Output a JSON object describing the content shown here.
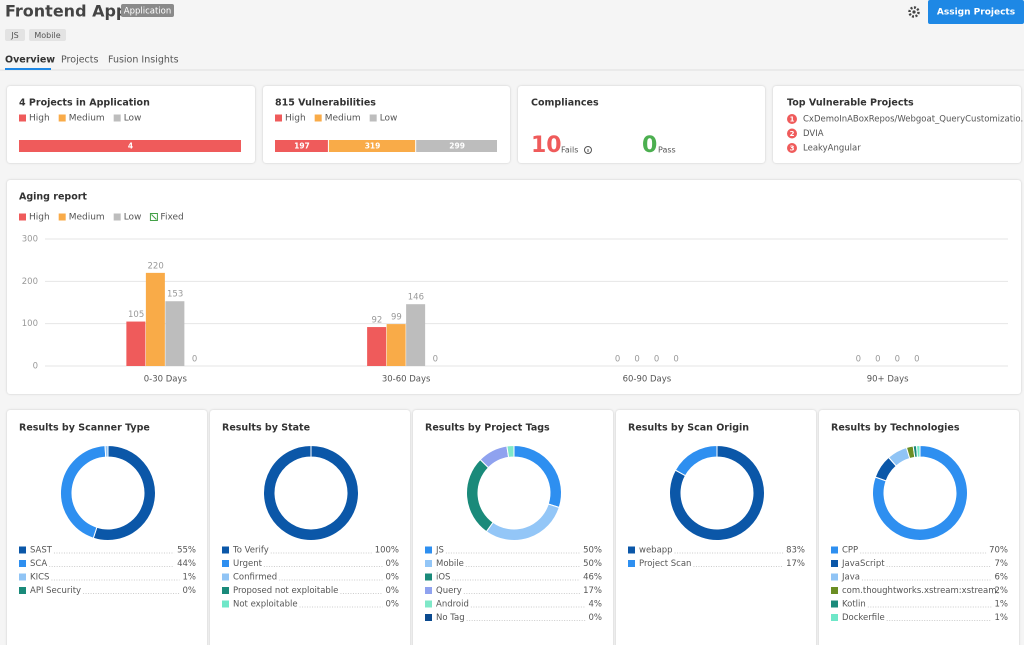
{
  "header": {
    "title": "Frontend Apps",
    "badge": "Application",
    "tags": [
      "JS",
      "Mobile"
    ],
    "button": "Assign Projects"
  },
  "tabs": [
    "Overview",
    "Projects",
    "Fusion Insights"
  ],
  "projects_card": {
    "title": "4 Projects in Application",
    "bar": [
      4
    ]
  },
  "vulnerabilities_card": {
    "title": "815 Vulnerabilities",
    "bar": [
      197,
      319,
      299
    ]
  },
  "compliances": {
    "title": "Compliances",
    "fails": 10,
    "fails_label": "Fails",
    "pass": 0,
    "pass_label": "Pass"
  },
  "top_projects": {
    "title": "Top Vulnerable Projects",
    "ranks": [
      1,
      2,
      3
    ],
    "items": [
      "CxDemoInABoxRepos/Webgoat_QueryCustomizatio...",
      "DVIA",
      "LeakyAngular"
    ]
  },
  "chart_data": [
    {
      "type": "bar",
      "title": "Aging report",
      "categories": [
        "0-30 Days",
        "30-60 Days",
        "60-90 Days",
        "90+ Days"
      ],
      "series": [
        {
          "name": "High",
          "color": "#ef5b5b",
          "values": [
            105,
            92,
            0,
            0
          ]
        },
        {
          "name": "Medium",
          "color": "#f9ab48",
          "values": [
            220,
            99,
            0,
            0
          ]
        },
        {
          "name": "Low",
          "color": "#bdbdbd",
          "values": [
            153,
            146,
            0,
            0
          ]
        },
        {
          "name": "Fixed",
          "color": "#43a047",
          "values": [
            0,
            0,
            0,
            0
          ]
        }
      ],
      "ylim": [
        0,
        300
      ],
      "yticks": [
        0,
        100,
        200,
        300
      ],
      "grid": true
    },
    {
      "type": "donut",
      "title": "Results by Scanner Type",
      "categories": [
        "SAST",
        "SCA",
        "KICS",
        "API Security"
      ],
      "values": [
        55,
        44,
        1,
        0
      ],
      "value_labels": [
        "55%",
        "44%",
        "1%",
        "0%"
      ],
      "colors": [
        "#0b57a8",
        "#2e8ff0",
        "#90c4f5",
        "#1a8a7a"
      ]
    },
    {
      "type": "donut",
      "title": "Results by State",
      "categories": [
        "To Verify",
        "Urgent",
        "Confirmed",
        "Proposed not exploitable",
        "Not exploitable"
      ],
      "values": [
        100,
        0,
        0,
        0,
        0
      ],
      "value_labels": [
        "100%",
        "0%",
        "0%",
        "0%",
        "0%"
      ],
      "colors": [
        "#0b57a8",
        "#2e8ff0",
        "#90c4f5",
        "#1a8a7a",
        "#6ee7c8"
      ]
    },
    {
      "type": "donut",
      "title": "Results by Project Tags",
      "categories": [
        "JS",
        "Mobile",
        "iOS",
        "Query",
        "Android",
        "No Tag"
      ],
      "values": [
        50,
        50,
        46,
        17,
        4,
        0
      ],
      "value_labels": [
        "50%",
        "50%",
        "46%",
        "17%",
        "4%",
        "0%"
      ],
      "colors": [
        "#2e8ff0",
        "#93c6f7",
        "#1a8a7a",
        "#8fa2ef",
        "#7fe8c8",
        "#0b4a8f"
      ]
    },
    {
      "type": "donut",
      "title": "Results by Scan Origin",
      "categories": [
        "webapp",
        "Project Scan"
      ],
      "values": [
        83,
        17
      ],
      "value_labels": [
        "83%",
        "17%"
      ],
      "colors": [
        "#0b57a8",
        "#2e8ff0"
      ]
    },
    {
      "type": "donut",
      "title": "Results by Technologies",
      "categories": [
        "CPP",
        "JavaScript",
        "Java",
        "com.thoughtworks.xstream:xstream",
        "Kotlin",
        "Dockerfile"
      ],
      "values": [
        70,
        7,
        6,
        2,
        1,
        1
      ],
      "value_labels": [
        "70%",
        "7%",
        "6%",
        "2%",
        "1%",
        "1%"
      ],
      "colors": [
        "#2e8ff0",
        "#0b57a8",
        "#90c4f5",
        "#6b8e23",
        "#1a8a7a",
        "#6ee7c8"
      ]
    }
  ]
}
